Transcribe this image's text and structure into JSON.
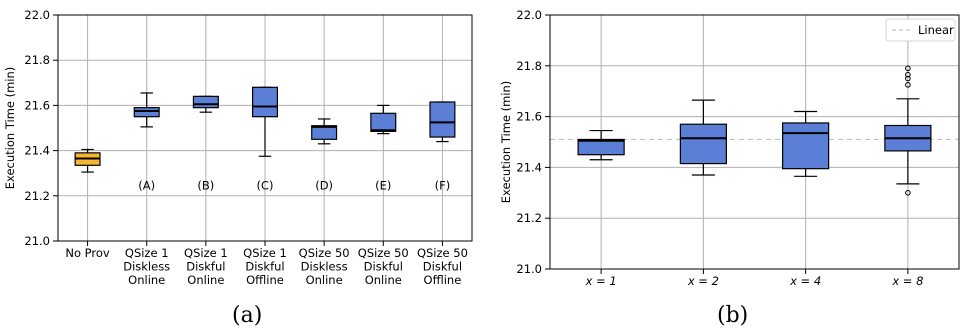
{
  "panels": [
    {
      "caption": "(a)",
      "chart_data": {
        "type": "box",
        "ylabel": "Execution Time (min)",
        "ylim": [
          21.0,
          22.0
        ],
        "yticks": [
          "21.0",
          "21.2",
          "21.4",
          "21.6",
          "21.8",
          "22.0"
        ],
        "grid": true,
        "categories": [
          [
            "No Prov"
          ],
          [
            "QSize 1",
            "Diskless",
            "Online"
          ],
          [
            "QSize 1",
            "Diskful",
            "Online"
          ],
          [
            "QSize 1",
            "Diskful",
            "Offline"
          ],
          [
            "QSize 50",
            "Diskless",
            "Online"
          ],
          [
            "QSize 50",
            "Diskful",
            "Online"
          ],
          [
            "QSize 50",
            "Diskful",
            "Offline"
          ]
        ],
        "annotations": [
          "",
          "(A)",
          "(B)",
          "(C)",
          "(D)",
          "(E)",
          "(F)"
        ],
        "boxes": [
          {
            "whislo": 21.305,
            "q1": 21.335,
            "med": 21.365,
            "q3": 21.39,
            "whishi": 21.405,
            "color": "#f5b731",
            "fliers": []
          },
          {
            "whislo": 21.505,
            "q1": 21.55,
            "med": 21.575,
            "q3": 21.59,
            "whishi": 21.655,
            "color": "#5b7fd6",
            "fliers": []
          },
          {
            "whislo": 21.57,
            "q1": 21.59,
            "med": 21.605,
            "q3": 21.64,
            "whishi": 21.64,
            "color": "#5b7fd6",
            "fliers": []
          },
          {
            "whislo": 21.375,
            "q1": 21.55,
            "med": 21.595,
            "q3": 21.68,
            "whishi": 21.68,
            "color": "#5b7fd6",
            "fliers": []
          },
          {
            "whislo": 21.43,
            "q1": 21.45,
            "med": 21.505,
            "q3": 21.51,
            "whishi": 21.54,
            "color": "#5b7fd6",
            "fliers": []
          },
          {
            "whislo": 21.475,
            "q1": 21.485,
            "med": 21.49,
            "q3": 21.565,
            "whishi": 21.6,
            "color": "#5b7fd6",
            "fliers": []
          },
          {
            "whislo": 21.44,
            "q1": 21.46,
            "med": 21.525,
            "q3": 21.615,
            "whishi": 21.615,
            "color": "#5b7fd6",
            "fliers": []
          }
        ]
      }
    },
    {
      "caption": "(b)",
      "chart_data": {
        "type": "box",
        "ylabel": "Execution Time (min)",
        "ylim": [
          21.0,
          22.0
        ],
        "yticks": [
          "21.0",
          "21.2",
          "21.4",
          "21.6",
          "21.8",
          "22.0"
        ],
        "grid": true,
        "categories": [
          [
            "x = 1"
          ],
          [
            "x = 2"
          ],
          [
            "x = 4"
          ],
          [
            "x = 8"
          ]
        ],
        "annotations": [
          "",
          "",
          "",
          ""
        ],
        "reference_line": {
          "name": "Linear",
          "y": 21.51,
          "color": "#bfc3cc"
        },
        "legend": {
          "position": "top-right",
          "entries": [
            "Linear"
          ]
        },
        "boxes": [
          {
            "whislo": 21.43,
            "q1": 21.45,
            "med": 21.505,
            "q3": 21.51,
            "whishi": 21.545,
            "color": "#5b7fd6",
            "fliers": []
          },
          {
            "whislo": 21.37,
            "q1": 21.415,
            "med": 21.515,
            "q3": 21.57,
            "whishi": 21.665,
            "color": "#5b7fd6",
            "fliers": []
          },
          {
            "whislo": 21.365,
            "q1": 21.395,
            "med": 21.535,
            "q3": 21.575,
            "whishi": 21.62,
            "color": "#5b7fd6",
            "fliers": []
          },
          {
            "whislo": 21.335,
            "q1": 21.465,
            "med": 21.515,
            "q3": 21.565,
            "whishi": 21.67,
            "color": "#5b7fd6",
            "fliers": [
              21.3,
              21.725,
              21.75,
              21.765,
              21.79
            ]
          }
        ]
      }
    }
  ]
}
